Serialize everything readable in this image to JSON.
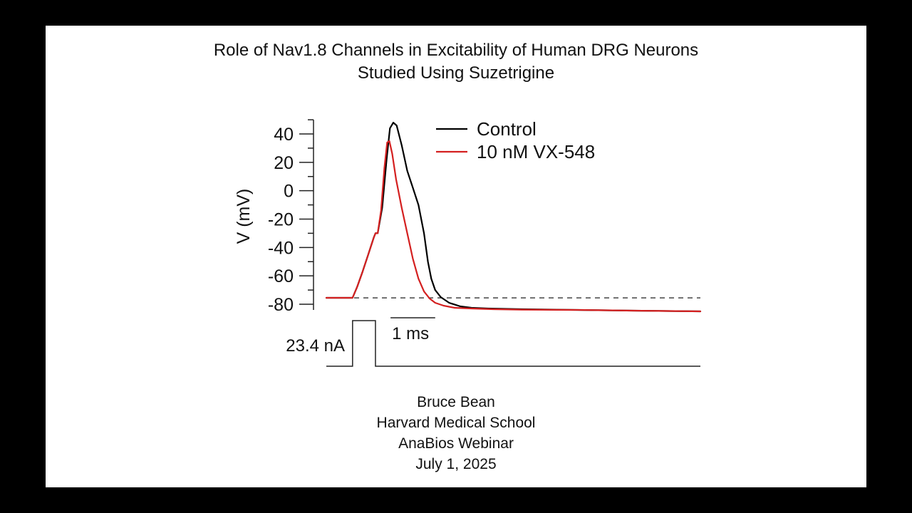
{
  "slide": {
    "title_line_1": "Role of Nav1.8 Channels in Excitability of Human DRG Neurons",
    "title_line_2": "Studied Using Suzetrigine",
    "credits": [
      "Bruce Bean",
      "Harvard Medical School",
      "AnaBios Webinar",
      "July 1, 2025"
    ]
  },
  "chart_data": {
    "type": "line",
    "ylabel": "V (mV)",
    "xlabel": "",
    "y_ticks": [
      40,
      20,
      0,
      -20,
      -40,
      -60,
      -80
    ],
    "y_tick_labels": [
      "40",
      "20",
      "0",
      "-20",
      "-40",
      "-60",
      "-80"
    ],
    "ylim": [
      -80,
      40
    ],
    "xlim": [
      0,
      6.7
    ],
    "x_units": "ms",
    "grid": false,
    "legend_position": "top-right",
    "reference_line": {
      "style": "dashed",
      "y": -75.5
    },
    "scale_bar": {
      "label": "1 ms",
      "length": 0.8
    },
    "stimulus": {
      "label": "23.4 nA",
      "start": 0.47,
      "end": 0.88
    },
    "colors": {
      "control": "#000000",
      "vx548": "#d42020",
      "axis": "#222222"
    },
    "series": [
      {
        "name": "Control",
        "color": "#000000",
        "x": [
          0,
          0.47,
          0.55,
          0.65,
          0.75,
          0.85,
          0.88,
          0.92,
          1.0,
          1.08,
          1.14,
          1.2,
          1.26,
          1.35,
          1.45,
          1.55,
          1.65,
          1.75,
          1.82,
          1.88,
          1.95,
          2.05,
          2.2,
          2.4,
          2.6,
          2.9,
          3.5,
          4.5,
          5.5,
          6.7
        ],
        "y": [
          -75.5,
          -75.5,
          -68,
          -57,
          -45,
          -33,
          -30,
          -30,
          -12,
          22,
          44,
          48,
          46,
          32,
          14,
          2,
          -10,
          -30,
          -50,
          -62,
          -70,
          -75,
          -79,
          -81.5,
          -82.5,
          -83,
          -83.5,
          -84,
          -84.5,
          -85
        ]
      },
      {
        "name": "10 nM VX-548",
        "color": "#d42020",
        "x": [
          0,
          0.47,
          0.55,
          0.65,
          0.75,
          0.85,
          0.88,
          0.92,
          0.98,
          1.04,
          1.09,
          1.13,
          1.18,
          1.25,
          1.35,
          1.45,
          1.55,
          1.65,
          1.75,
          1.85,
          1.95,
          2.1,
          2.3,
          2.6,
          3.0,
          3.5,
          4.5,
          5.5,
          6.7
        ],
        "y": [
          -75.5,
          -75.5,
          -68,
          -57,
          -45,
          -33,
          -30,
          -30,
          -14,
          16,
          34,
          35,
          26,
          8,
          -12,
          -30,
          -48,
          -62,
          -71,
          -76,
          -79,
          -81,
          -82.5,
          -83,
          -83.5,
          -83.8,
          -84,
          -84.5,
          -85
        ]
      }
    ]
  }
}
